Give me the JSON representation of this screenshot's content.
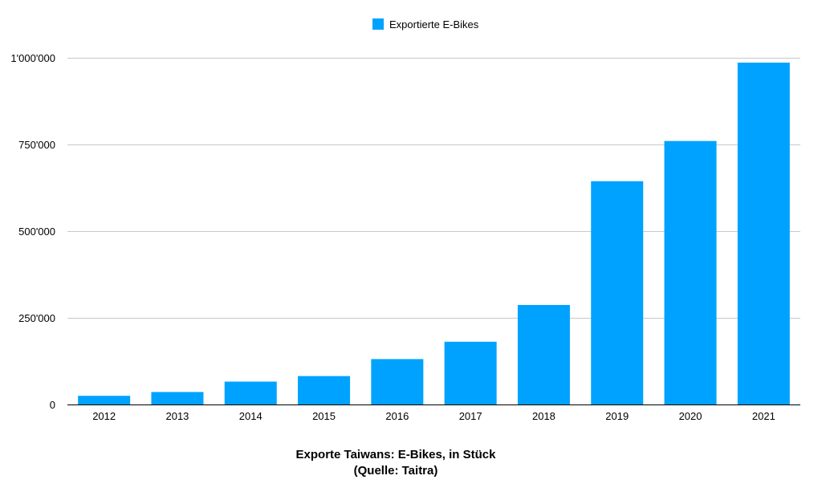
{
  "chart_data": {
    "type": "bar",
    "categories": [
      "2012",
      "2013",
      "2014",
      "2015",
      "2016",
      "2017",
      "2018",
      "2019",
      "2020",
      "2021"
    ],
    "series": [
      {
        "name": "Exportierte E-Bikes",
        "values": [
          25000,
          36000,
          66000,
          82000,
          131000,
          181000,
          287000,
          644000,
          760000,
          986000
        ]
      }
    ],
    "ylim": [
      0,
      1000000
    ],
    "yticks": [
      0,
      250000,
      500000,
      750000,
      1000000
    ],
    "ytick_labels": [
      "0",
      "250'000",
      "500'000",
      "750'000",
      "1'000'000"
    ],
    "title_lines": [
      "Exporte Taiwans: E-Bikes, in Stück",
      "(Quelle: Taitra)"
    ],
    "xlabel": "",
    "ylabel": "",
    "grid": true,
    "legend_position": "top-center",
    "colors": {
      "bar": "#00A2FF",
      "grid": "#C8C8C8",
      "axis": "#000000"
    }
  }
}
